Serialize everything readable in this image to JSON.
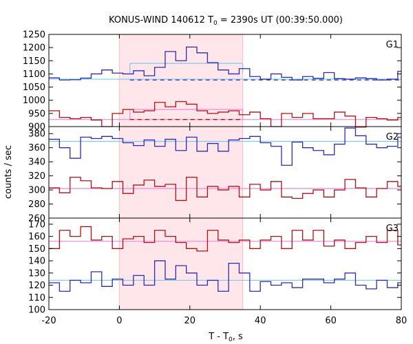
{
  "chart_data": {
    "type": "line",
    "title": {
      "main": "KONUS-WIND 140612 T",
      "sub": "0",
      "rest": " = 2390s UT (00:39:50.000)"
    },
    "xlabel": {
      "main": "T - T",
      "sub": "0",
      "rest": ", s"
    },
    "ylabel": "counts / sec",
    "xlim": [
      -20,
      80
    ],
    "xticks": [
      -20,
      0,
      20,
      40,
      60,
      80
    ],
    "highlight_interval": [
      0,
      35
    ],
    "colors": {
      "blue": "#2b2bb5",
      "red": "#b01010",
      "bg_line_blue": "#7ec8e8",
      "bg_line_red": "#ee88d8",
      "highlight": "#ffe6ea",
      "highlight_edge": "#ffbcc6"
    },
    "panels": [
      {
        "name": "G1",
        "ylim": [
          900,
          1250
        ],
        "yticks": [
          900,
          950,
          1000,
          1050,
          1100,
          1150,
          1200,
          1250
        ],
        "series": [
          {
            "color": "blue",
            "x": [
              -20,
              -17,
              -14,
              -11,
              -8,
              -5,
              -2,
              1,
              4,
              7,
              10,
              13,
              16,
              19,
              22,
              25,
              28,
              31,
              34,
              37,
              40,
              43,
              46,
              49,
              52,
              55,
              58,
              61,
              64,
              67,
              70,
              73,
              76,
              79
            ],
            "y": [
              1085,
              1077,
              1078,
              1084,
              1100,
              1115,
              1103,
              1100,
              1112,
              1093,
              1125,
              1185,
              1150,
              1202,
              1180,
              1143,
              1115,
              1100,
              1120,
              1090,
              1080,
              1100,
              1087,
              1077,
              1090,
              1083,
              1105,
              1082,
              1080,
              1085,
              1082,
              1077,
              1080,
              1110
            ],
            "step": true
          },
          {
            "color": "red",
            "x": [
              -20,
              -17,
              -14,
              -11,
              -8,
              -5,
              -2,
              1,
              4,
              7,
              10,
              13,
              16,
              19,
              22,
              25,
              28,
              31,
              34,
              37,
              40,
              43,
              46,
              49,
              52,
              55,
              58,
              61,
              64,
              67,
              70,
              73,
              76,
              79
            ],
            "y": [
              960,
              935,
              930,
              935,
              925,
              900,
              950,
              965,
              955,
              960,
              992,
              975,
              995,
              985,
              960,
              950,
              955,
              960,
              945,
              955,
              930,
              900,
              950,
              935,
              950,
              930,
              930,
              955,
              940,
              898,
              935,
              930,
              925,
              935
            ],
            "step": true
          }
        ],
        "background_levels": [
          {
            "color": "bg_line_blue",
            "value": 1080
          },
          {
            "color": "bg_line_red",
            "value": 927
          }
        ],
        "fit_segments": [
          {
            "color": "bg_line_blue",
            "x": [
              3,
              35
            ],
            "value": 1140
          },
          {
            "color": "bg_line_red",
            "x": [
              3,
              35
            ],
            "value": 965
          }
        ],
        "dashed_segments": [
          {
            "color": "blue",
            "x": [
              3,
              80
            ],
            "value": 1077
          },
          {
            "color": "red",
            "x": [
              3,
              35
            ],
            "value": 927
          }
        ]
      },
      {
        "name": "G2",
        "ylim": [
          260,
          390
        ],
        "yticks": [
          260,
          280,
          300,
          320,
          340,
          360,
          380
        ],
        "series": [
          {
            "color": "blue",
            "x": [
              -20,
              -17,
              -14,
              -11,
              -8,
              -5,
              -2,
              1,
              4,
              7,
              10,
              13,
              16,
              19,
              22,
              25,
              28,
              31,
              34,
              37,
              40,
              43,
              46,
              49,
              52,
              55,
              58,
              61,
              64,
              67,
              70,
              73,
              76,
              79
            ],
            "y": [
              372,
              360,
              345,
              375,
              373,
              376,
              373,
              367,
              363,
              371,
              362,
              372,
              356,
              375,
              355,
              366,
              355,
              371,
              373,
              376,
              367,
              362,
              335,
              368,
              360,
              356,
              350,
              365,
              388,
              377,
              365,
              360,
              362,
              375
            ],
            "step": true
          },
          {
            "color": "red",
            "x": [
              -20,
              -17,
              -14,
              -11,
              -8,
              -5,
              -2,
              1,
              4,
              7,
              10,
              13,
              16,
              19,
              22,
              25,
              28,
              31,
              34,
              37,
              40,
              43,
              46,
              49,
              52,
              55,
              58,
              61,
              64,
              67,
              70,
              73,
              76,
              79
            ],
            "y": [
              303,
              296,
              318,
              313,
              303,
              302,
              312,
              295,
              307,
              314,
              305,
              308,
              285,
              318,
              290,
              305,
              300,
              305,
              290,
              308,
              300,
              312,
              290,
              288,
              295,
              300,
              290,
              300,
              315,
              303,
              290,
              302,
              312,
              305
            ],
            "step": true
          }
        ],
        "background_levels": [
          {
            "color": "bg_line_blue",
            "value": 369
          },
          {
            "color": "bg_line_red",
            "value": 302
          }
        ],
        "fit_segments": [],
        "dashed_segments": []
      },
      {
        "name": "G3",
        "ylim": [
          100,
          175
        ],
        "yticks": [
          100,
          110,
          120,
          130,
          140,
          150,
          160,
          170
        ],
        "series": [
          {
            "color": "red",
            "x": [
              -20,
              -17,
              -14,
              -11,
              -8,
              -5,
              -2,
              1,
              4,
              7,
              10,
              13,
              16,
              19,
              22,
              25,
              28,
              31,
              34,
              37,
              40,
              43,
              46,
              49,
              52,
              55,
              58,
              61,
              64,
              67,
              70,
              73,
              76,
              79
            ],
            "y": [
              150,
              165,
              160,
              168,
              157,
              160,
              150,
              158,
              160,
              155,
              165,
              160,
              155,
              150,
              148,
              165,
              157,
              155,
              157,
              150,
              157,
              160,
              150,
              165,
              157,
              165,
              152,
              157,
              150,
              155,
              160,
              155,
              165,
              153
            ],
            "step": true
          },
          {
            "color": "blue",
            "x": [
              -20,
              -17,
              -14,
              -11,
              -8,
              -5,
              -2,
              1,
              4,
              7,
              10,
              13,
              16,
              19,
              22,
              25,
              28,
              31,
              34,
              37,
              40,
              43,
              46,
              49,
              52,
              55,
              58,
              61,
              64,
              67,
              70,
              73,
              76,
              79
            ],
            "y": [
              122,
              115,
              124,
              122,
              131,
              119,
              125,
              120,
              128,
              120,
              140,
              125,
              136,
              130,
              120,
              124,
              115,
              138,
              130,
              115,
              123,
              120,
              122,
              118,
              125,
              125,
              122,
              125,
              130,
              120,
              117,
              124,
              118,
              122
            ],
            "step": true
          }
        ],
        "background_levels": [
          {
            "color": "bg_line_red",
            "value": 156
          },
          {
            "color": "bg_line_blue",
            "value": 124
          }
        ],
        "fit_segments": [],
        "dashed_segments": []
      }
    ]
  }
}
